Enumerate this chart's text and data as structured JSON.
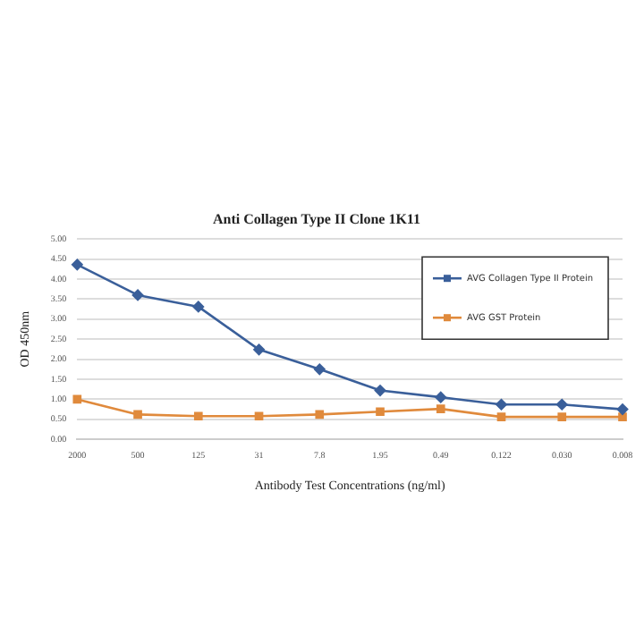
{
  "chart_data": {
    "type": "line",
    "title": "Anti Collagen Type II Clone 1K11",
    "xlabel": "Antibody Test Concentrations (ng/ml)",
    "ylabel": "OD 450nm",
    "categories": [
      "2000",
      "500",
      "125",
      "31",
      "7.8",
      "1.95",
      "0.49",
      "0.122",
      "0.030",
      "0.008"
    ],
    "series": [
      {
        "name": "AVG Collagen Type II Protein",
        "color": "#3a5f9a",
        "marker": "diamond",
        "values": [
          4.36,
          3.6,
          3.31,
          2.24,
          1.75,
          1.22,
          1.05,
          0.87,
          0.87,
          0.75
        ]
      },
      {
        "name": "AVG GST Protein",
        "color": "#e08a3c",
        "marker": "square",
        "values": [
          1.0,
          0.62,
          0.58,
          0.58,
          0.62,
          0.69,
          0.76,
          0.56,
          0.56,
          0.56
        ]
      }
    ],
    "ylim": [
      0,
      5
    ],
    "yticks": [
      {
        "value": 0,
        "label": "0.00"
      },
      {
        "value": 0.5,
        "label": "0.50"
      },
      {
        "value": 1,
        "label": "1.00"
      },
      {
        "value": 1.5,
        "label": "1.50"
      },
      {
        "value": 2,
        "label": "2.00"
      },
      {
        "value": 2.5,
        "label": "2.50"
      },
      {
        "value": 3,
        "label": "3.00"
      },
      {
        "value": 3.5,
        "label": "3.50"
      },
      {
        "value": 4,
        "label": "4.00"
      },
      {
        "value": 4.5,
        "label": "4.50"
      },
      {
        "value": 5,
        "label": "5.00"
      }
    ],
    "grid": "y",
    "legend": "top right"
  }
}
